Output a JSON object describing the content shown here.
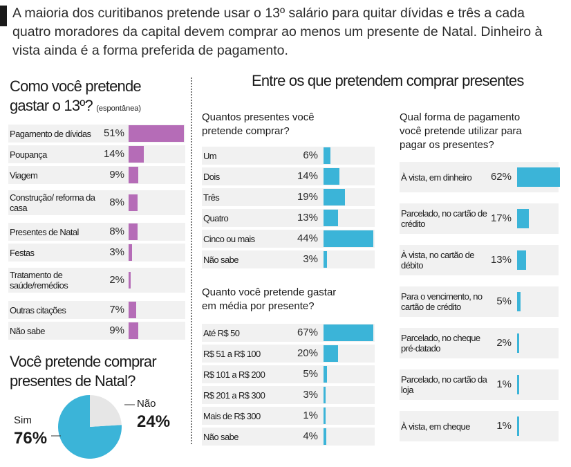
{
  "intro": "A maioria dos curitibanos pretende usar o 13º salário para quitar dívidas e três a cada quatro moradores da capital devem comprar ao menos um presente de Natal. Dinheiro à vista ainda é a forma preferida de pagamento.",
  "colors": {
    "purple": "#b56cb7",
    "cyan": "#3bb4d8",
    "pie_grey": "#e6e6e6",
    "row_bg": "#f1f1f1"
  },
  "chart_data": [
    {
      "type": "bar",
      "title_line1": "Como você pretende",
      "title_line2": "gastar o 13º?",
      "subtitle": "(espontânea)",
      "categories": [
        "Pagamento de dívidas",
        "Poupança",
        "Viagem",
        "Construção/ reforma da casa",
        "Presentes de Natal",
        "Festas",
        "Tratamento de saúde/remédios",
        "Outras citações",
        "Não sabe"
      ],
      "values": [
        51,
        14,
        9,
        8,
        8,
        3,
        2,
        7,
        9
      ],
      "labels": [
        "51%",
        "14%",
        "9%",
        "8%",
        "8%",
        "3%",
        "2%",
        "7%",
        "9%"
      ],
      "unit": "%"
    },
    {
      "type": "pie",
      "title_line1": "Você pretende comprar",
      "title_line2": "presentes de Natal?",
      "categories": [
        "Sim",
        "Não"
      ],
      "values": [
        76,
        24
      ],
      "labels": [
        "76%",
        "24%"
      ]
    },
    {
      "type": "bar",
      "header": "Entre os que pretendem comprar presentes",
      "title_line1": "Quantos presentes você",
      "title_line2": "pretende comprar?",
      "categories": [
        "Um",
        "Dois",
        "Três",
        "Quatro",
        "Cinco ou mais",
        "Não sabe"
      ],
      "values": [
        6,
        14,
        19,
        13,
        44,
        3
      ],
      "labels": [
        "6%",
        "14%",
        "19%",
        "13%",
        "44%",
        "3%"
      ]
    },
    {
      "type": "bar",
      "title_line1": "Quanto você pretende gastar",
      "title_line2": "em média por presente?",
      "categories": [
        "Até R$ 50",
        "R$ 51 a R$ 100",
        "R$ 101 a R$ 200",
        "R$ 201 a R$ 300",
        "Mais de R$ 300",
        "Não sabe"
      ],
      "values": [
        67,
        20,
        5,
        3,
        1,
        4
      ],
      "labels": [
        "67%",
        "20%",
        "5%",
        "3%",
        "1%",
        "4%"
      ]
    },
    {
      "type": "bar",
      "title_line1": "Qual forma de pagamento",
      "title_line2": "você pretende utilizar para",
      "title_line3": "pagar os presentes?",
      "categories": [
        "À vista, em dinheiro",
        "Parcelado, no cartão de crédito",
        "À vista, no cartão de débito",
        "Para o vencimento, no cartão de crédito",
        "Parcelado, no cheque pré-datado",
        "Parcelado, no cartão da loja",
        "À vista, em cheque"
      ],
      "values": [
        62,
        17,
        13,
        5,
        2,
        1,
        1
      ],
      "labels": [
        "62%",
        "17%",
        "13%",
        "5%",
        "2%",
        "1%",
        "1%"
      ]
    }
  ]
}
